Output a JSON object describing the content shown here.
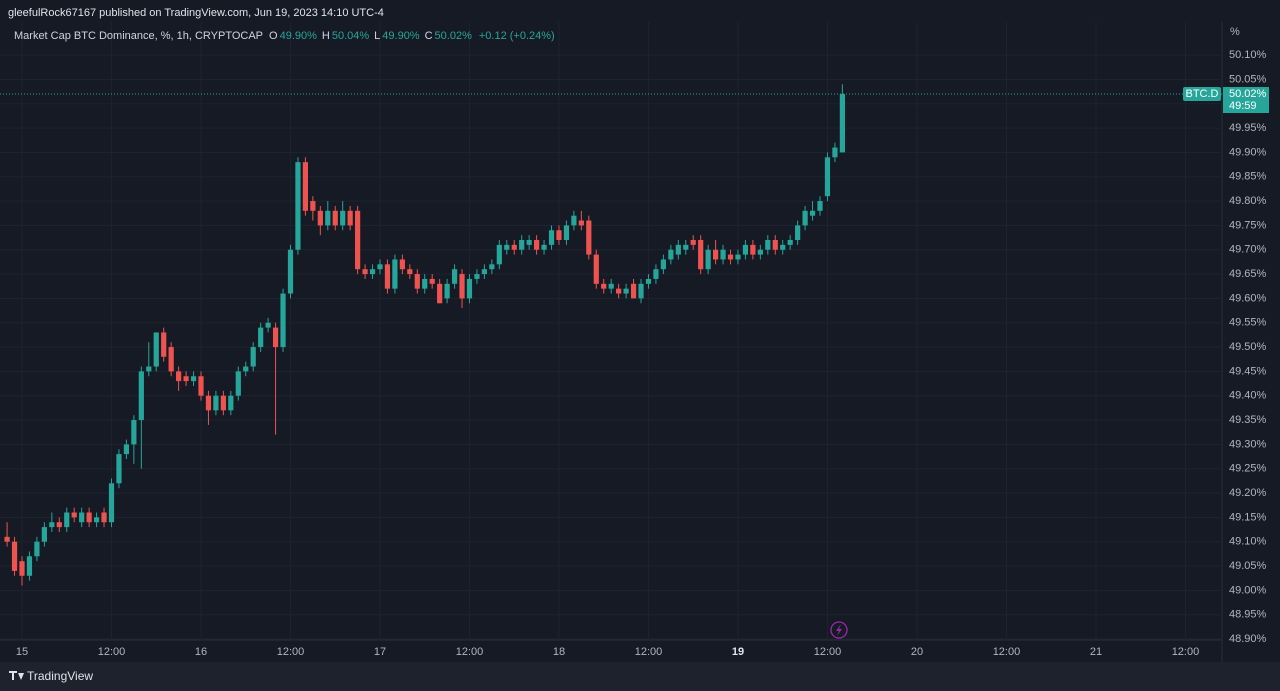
{
  "chart_data": {
    "type": "candlestick",
    "header": "gleefulRock67167 published on TradingView.com, Jun 19, 2023 14:10 UTC-4",
    "title": "Market Cap BTC Dominance, %, 1h, CRYPTOCAP",
    "legend_values": [
      {
        "key": "O",
        "value": "49.90%"
      },
      {
        "key": "H",
        "value": "50.04%"
      },
      {
        "key": "L",
        "value": "49.90%"
      },
      {
        "key": "C",
        "value": "50.02%"
      }
    ],
    "change": "+0.12 (+0.24%)",
    "y_unit": "%",
    "symbol": "BTC.D",
    "last_price": {
      "value": 50.02,
      "label": "50.02%"
    },
    "countdown": "49:59",
    "footer": "TradingView",
    "up_color": "#26a69a",
    "down_color": "#ef5350",
    "grid": true,
    "xlim": [
      -2.95,
      160.9
    ],
    "xticks": [
      {
        "value": 0,
        "label": "15"
      },
      {
        "value": 12,
        "label": "12:00"
      },
      {
        "value": 24,
        "label": "16"
      },
      {
        "value": 36,
        "label": "12:00"
      },
      {
        "value": 48,
        "label": "17"
      },
      {
        "value": 60,
        "label": "12:00"
      },
      {
        "value": 72,
        "label": "18"
      },
      {
        "value": 84,
        "label": "12:00"
      },
      {
        "value": 96,
        "label": "19"
      },
      {
        "value": 108,
        "label": "12:00"
      },
      {
        "value": 120,
        "label": "20"
      },
      {
        "value": 132,
        "label": "12:00"
      },
      {
        "value": 144,
        "label": "21"
      },
      {
        "value": 156,
        "label": "12:00"
      }
    ],
    "ylim": [
      48.898,
      50.168
    ],
    "yticks": [
      {
        "value": 48.9,
        "label": "48.90%"
      },
      {
        "value": 48.95,
        "label": "48.95%"
      },
      {
        "value": 49.0,
        "label": "49.00%"
      },
      {
        "value": 49.05,
        "label": "49.05%"
      },
      {
        "value": 49.1,
        "label": "49.10%"
      },
      {
        "value": 49.15,
        "label": "49.15%"
      },
      {
        "value": 49.2,
        "label": "49.20%"
      },
      {
        "value": 49.25,
        "label": "49.25%"
      },
      {
        "value": 49.3,
        "label": "49.30%"
      },
      {
        "value": 49.35,
        "label": "49.35%"
      },
      {
        "value": 49.4,
        "label": "49.40%"
      },
      {
        "value": 49.45,
        "label": "49.45%"
      },
      {
        "value": 49.5,
        "label": "49.50%"
      },
      {
        "value": 49.55,
        "label": "49.55%"
      },
      {
        "value": 49.6,
        "label": "49.60%"
      },
      {
        "value": 49.65,
        "label": "49.65%"
      },
      {
        "value": 49.7,
        "label": "49.70%"
      },
      {
        "value": 49.75,
        "label": "49.75%"
      },
      {
        "value": 49.8,
        "label": "49.80%"
      },
      {
        "value": 49.85,
        "label": "49.85%"
      },
      {
        "value": 49.9,
        "label": "49.90%"
      },
      {
        "value": 49.95,
        "label": "49.95%"
      },
      {
        "value": 50.0,
        "label": "50.00%"
      },
      {
        "value": 50.05,
        "label": "50.05%"
      },
      {
        "value": 50.1,
        "label": "50.10%"
      }
    ],
    "x": [
      -2,
      -1,
      0,
      1,
      2,
      3,
      4,
      5,
      6,
      7,
      8,
      9,
      10,
      11,
      12,
      13,
      14,
      15,
      16,
      17,
      18,
      19,
      20,
      21,
      22,
      23,
      24,
      25,
      26,
      27,
      28,
      29,
      30,
      31,
      32,
      33,
      34,
      35,
      36,
      37,
      38,
      39,
      40,
      41,
      42,
      43,
      44,
      45,
      46,
      47,
      48,
      49,
      50,
      51,
      52,
      53,
      54,
      55,
      56,
      57,
      58,
      59,
      60,
      61,
      62,
      63,
      64,
      65,
      66,
      67,
      68,
      69,
      70,
      71,
      72,
      73,
      74,
      75,
      76,
      77,
      78,
      79,
      80,
      81,
      82,
      83,
      84,
      85,
      86,
      87,
      88,
      89,
      90,
      91,
      92,
      93,
      94,
      95,
      96,
      97,
      98,
      99,
      100,
      101,
      102,
      103,
      104,
      105,
      106,
      107,
      108,
      109,
      110
    ],
    "ohlc": [
      [
        49.11,
        49.14,
        49.09,
        49.1
      ],
      [
        49.1,
        49.11,
        49.03,
        49.04
      ],
      [
        49.06,
        49.07,
        49.01,
        49.03
      ],
      [
        49.03,
        49.08,
        49.02,
        49.07
      ],
      [
        49.07,
        49.11,
        49.06,
        49.1
      ],
      [
        49.1,
        49.14,
        49.09,
        49.13
      ],
      [
        49.13,
        49.16,
        49.12,
        49.14
      ],
      [
        49.14,
        49.15,
        49.12,
        49.13
      ],
      [
        49.13,
        49.17,
        49.12,
        49.16
      ],
      [
        49.16,
        49.17,
        49.14,
        49.15
      ],
      [
        49.14,
        49.17,
        49.13,
        49.16
      ],
      [
        49.16,
        49.17,
        49.13,
        49.14
      ],
      [
        49.14,
        49.16,
        49.13,
        49.15
      ],
      [
        49.16,
        49.17,
        49.13,
        49.14
      ],
      [
        49.14,
        49.23,
        49.13,
        49.22
      ],
      [
        49.22,
        49.29,
        49.21,
        49.28
      ],
      [
        49.28,
        49.31,
        49.27,
        49.3
      ],
      [
        49.3,
        49.36,
        49.26,
        49.35
      ],
      [
        49.35,
        49.46,
        49.25,
        49.45
      ],
      [
        49.45,
        49.51,
        49.44,
        49.46
      ],
      [
        49.46,
        49.53,
        49.45,
        49.53
      ],
      [
        49.53,
        49.54,
        49.47,
        49.48
      ],
      [
        49.5,
        49.51,
        49.44,
        49.45
      ],
      [
        49.45,
        49.46,
        49.41,
        49.43
      ],
      [
        49.44,
        49.45,
        49.42,
        49.43
      ],
      [
        49.43,
        49.45,
        49.42,
        49.44
      ],
      [
        49.44,
        49.45,
        49.39,
        49.4
      ],
      [
        49.4,
        49.41,
        49.34,
        49.37
      ],
      [
        49.37,
        49.41,
        49.36,
        49.4
      ],
      [
        49.4,
        49.41,
        49.36,
        49.37
      ],
      [
        49.37,
        49.41,
        49.36,
        49.4
      ],
      [
        49.4,
        49.46,
        49.39,
        49.45
      ],
      [
        49.45,
        49.47,
        49.44,
        49.46
      ],
      [
        49.46,
        49.51,
        49.45,
        49.5
      ],
      [
        49.5,
        49.55,
        49.49,
        49.54
      ],
      [
        49.54,
        49.56,
        49.53,
        49.55
      ],
      [
        49.54,
        49.55,
        49.32,
        49.5
      ],
      [
        49.5,
        49.62,
        49.49,
        49.61
      ],
      [
        49.61,
        49.71,
        49.6,
        49.7
      ],
      [
        49.7,
        49.89,
        49.69,
        49.88
      ],
      [
        49.88,
        49.89,
        49.77,
        49.78
      ],
      [
        49.8,
        49.81,
        49.76,
        49.78
      ],
      [
        49.78,
        49.79,
        49.73,
        49.75
      ],
      [
        49.75,
        49.8,
        49.74,
        49.78
      ],
      [
        49.78,
        49.79,
        49.74,
        49.75
      ],
      [
        49.75,
        49.8,
        49.74,
        49.78
      ],
      [
        49.78,
        49.79,
        49.74,
        49.75
      ],
      [
        49.78,
        49.79,
        49.65,
        49.66
      ],
      [
        49.66,
        49.67,
        49.64,
        49.65
      ],
      [
        49.65,
        49.67,
        49.64,
        49.66
      ],
      [
        49.66,
        49.68,
        49.65,
        49.67
      ],
      [
        49.67,
        49.68,
        49.61,
        49.62
      ],
      [
        49.62,
        49.69,
        49.61,
        49.68
      ],
      [
        49.68,
        49.69,
        49.65,
        49.66
      ],
      [
        49.66,
        49.67,
        49.64,
        49.65
      ],
      [
        49.65,
        49.66,
        49.61,
        49.62
      ],
      [
        49.62,
        49.65,
        49.61,
        49.64
      ],
      [
        49.64,
        49.65,
        49.62,
        49.63
      ],
      [
        49.63,
        49.64,
        49.59,
        49.59
      ],
      [
        49.6,
        49.64,
        49.59,
        49.63
      ],
      [
        49.63,
        49.67,
        49.62,
        49.66
      ],
      [
        49.65,
        49.66,
        49.58,
        49.6
      ],
      [
        49.6,
        49.65,
        49.59,
        49.64
      ],
      [
        49.64,
        49.66,
        49.63,
        49.65
      ],
      [
        49.65,
        49.67,
        49.64,
        49.66
      ],
      [
        49.66,
        49.68,
        49.65,
        49.67
      ],
      [
        49.67,
        49.72,
        49.66,
        49.71
      ],
      [
        49.7,
        49.72,
        49.69,
        49.71
      ],
      [
        49.71,
        49.72,
        49.69,
        49.7
      ],
      [
        49.7,
        49.73,
        49.69,
        49.72
      ],
      [
        49.71,
        49.73,
        49.7,
        49.72
      ],
      [
        49.72,
        49.73,
        49.69,
        49.7
      ],
      [
        49.7,
        49.72,
        49.69,
        49.71
      ],
      [
        49.71,
        49.75,
        49.7,
        49.74
      ],
      [
        49.74,
        49.75,
        49.71,
        49.72
      ],
      [
        49.72,
        49.76,
        49.71,
        49.75
      ],
      [
        49.75,
        49.78,
        49.74,
        49.77
      ],
      [
        49.76,
        49.78,
        49.74,
        49.75
      ],
      [
        49.76,
        49.77,
        49.68,
        49.69
      ],
      [
        49.69,
        49.7,
        49.62,
        49.63
      ],
      [
        49.63,
        49.64,
        49.61,
        49.62
      ],
      [
        49.62,
        49.64,
        49.61,
        49.63
      ],
      [
        49.62,
        49.63,
        49.6,
        49.61
      ],
      [
        49.61,
        49.63,
        49.6,
        49.62
      ],
      [
        49.63,
        49.64,
        49.6,
        49.6
      ],
      [
        49.6,
        49.64,
        49.59,
        49.63
      ],
      [
        49.63,
        49.65,
        49.62,
        49.64
      ],
      [
        49.64,
        49.67,
        49.63,
        49.66
      ],
      [
        49.66,
        49.69,
        49.65,
        49.68
      ],
      [
        49.68,
        49.71,
        49.67,
        49.7
      ],
      [
        49.69,
        49.72,
        49.68,
        49.71
      ],
      [
        49.7,
        49.72,
        49.69,
        49.71
      ],
      [
        49.72,
        49.73,
        49.7,
        49.71
      ],
      [
        49.72,
        49.73,
        49.65,
        49.66
      ],
      [
        49.66,
        49.71,
        49.65,
        49.7
      ],
      [
        49.7,
        49.72,
        49.67,
        49.68
      ],
      [
        49.68,
        49.71,
        49.67,
        49.7
      ],
      [
        49.69,
        49.7,
        49.67,
        49.68
      ],
      [
        49.68,
        49.7,
        49.67,
        49.69
      ],
      [
        49.69,
        49.72,
        49.68,
        49.71
      ],
      [
        49.71,
        49.72,
        49.68,
        49.69
      ],
      [
        49.69,
        49.71,
        49.68,
        49.7
      ],
      [
        49.7,
        49.73,
        49.69,
        49.72
      ],
      [
        49.72,
        49.73,
        49.69,
        49.7
      ],
      [
        49.7,
        49.72,
        49.69,
        49.71
      ],
      [
        49.71,
        49.73,
        49.7,
        49.72
      ],
      [
        49.72,
        49.76,
        49.71,
        49.75
      ],
      [
        49.75,
        49.79,
        49.74,
        49.78
      ],
      [
        49.77,
        49.8,
        49.76,
        49.78
      ],
      [
        49.78,
        49.81,
        49.77,
        49.8
      ],
      [
        49.81,
        49.9,
        49.8,
        49.89
      ],
      [
        49.89,
        49.92,
        49.88,
        49.91
      ],
      [
        49.9,
        50.04,
        49.9,
        50.02
      ]
    ]
  }
}
